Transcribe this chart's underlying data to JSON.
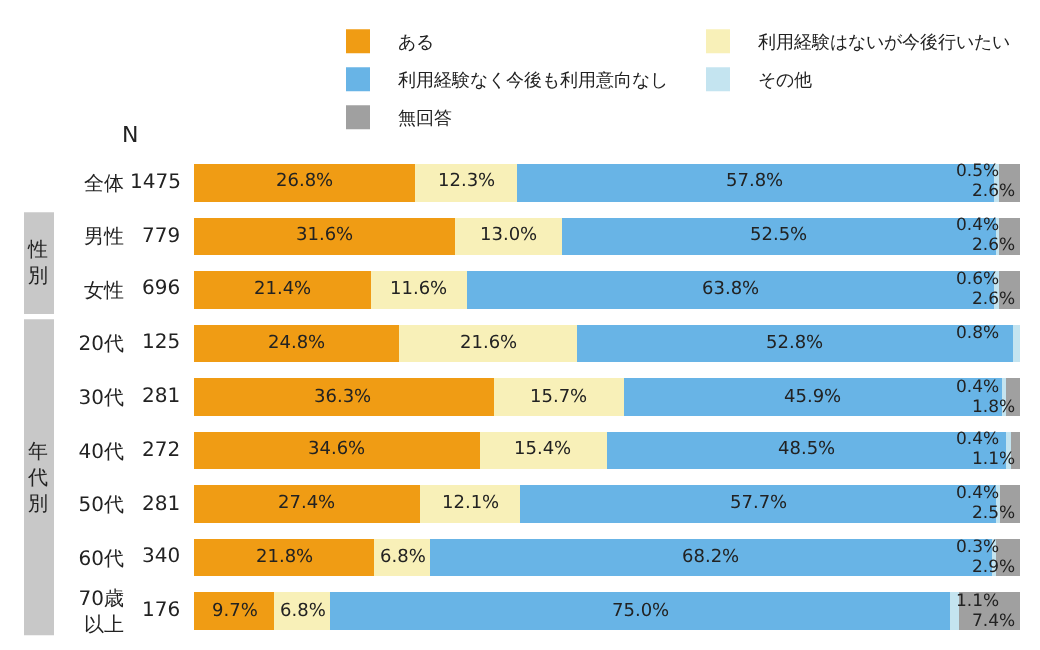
{
  "chart_data": {
    "type": "bar",
    "orientation": "horizontal",
    "stacked": true,
    "categories": [
      "全体",
      "男性",
      "女性",
      "20代",
      "30代",
      "40代",
      "50代",
      "60代",
      "70歳以上"
    ],
    "series": [
      {
        "name": "ある",
        "color": "#f09c14",
        "values": [
          26.8,
          31.6,
          21.4,
          24.8,
          36.3,
          34.6,
          27.4,
          21.8,
          9.7
        ],
        "value_labels": [
          "26.8%",
          "31.6%",
          "21.4%",
          "24.8%",
          "36.3%",
          "34.6%",
          "27.4%",
          "21.8%",
          "9.7%"
        ]
      },
      {
        "name": "利用経験はないが今後行いたい",
        "color": "#f8f0b8",
        "values": [
          12.3,
          13.0,
          11.6,
          21.6,
          15.7,
          15.4,
          12.1,
          6.8,
          6.8
        ],
        "value_labels": [
          "12.3%",
          "13.0%",
          "11.6%",
          "21.6%",
          "15.7%",
          "15.4%",
          "12.1%",
          "6.8%",
          "6.8%"
        ]
      },
      {
        "name": "利用経験なく今後も利用意向なし",
        "color": "#68b4e6",
        "values": [
          57.8,
          52.5,
          63.8,
          52.8,
          45.9,
          48.5,
          57.7,
          68.2,
          75.0
        ],
        "value_labels": [
          "57.8%",
          "52.5%",
          "63.8%",
          "52.8%",
          "45.9%",
          "48.5%",
          "57.7%",
          "68.2%",
          "75.0%"
        ]
      },
      {
        "name": "その他",
        "color": "#c4e4f0",
        "values": [
          0.5,
          0.4,
          0.6,
          0.8,
          0.4,
          0.4,
          0.4,
          0.3,
          1.1
        ],
        "value_labels": [
          "0.5%",
          "0.4%",
          "0.6%",
          "0.8%",
          "0.4%",
          "0.4%",
          "0.4%",
          "0.3%",
          "1.1%"
        ]
      },
      {
        "name": "無回答",
        "color": "#a0a0a0",
        "values": [
          2.6,
          2.6,
          2.6,
          null,
          1.8,
          1.1,
          2.5,
          2.9,
          7.4
        ],
        "value_labels": [
          "2.6%",
          "2.6%",
          "2.6%",
          null,
          "1.8%",
          "1.1%",
          "2.5%",
          "2.9%",
          "7.4%"
        ]
      }
    ],
    "xlim": [
      0,
      100
    ],
    "tick_labels": "y",
    "legend": "top right",
    "annotations": [
      "N",
      "性別",
      "年代別",
      "1475",
      "779",
      "696",
      "125",
      "281",
      "272",
      "281",
      "340",
      "176"
    ]
  }
}
